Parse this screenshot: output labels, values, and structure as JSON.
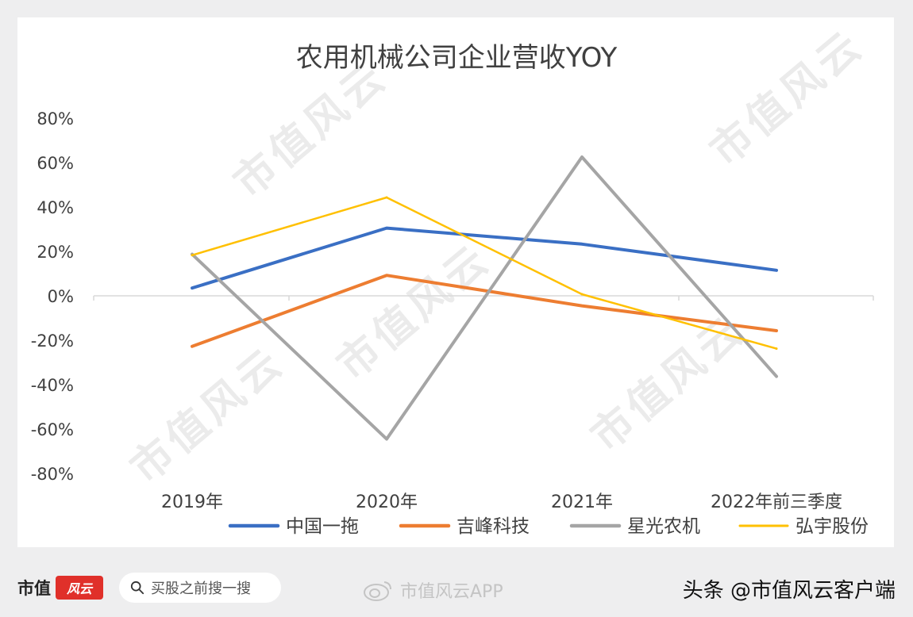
{
  "chart_data": {
    "type": "line",
    "title": "农用机械公司企业营收YOY",
    "xlabel": "",
    "ylabel": "",
    "categories": [
      "2019年",
      "2020年",
      "2021年",
      "2022年前三季度"
    ],
    "y_ticks": [
      "80%",
      "60%",
      "40%",
      "20%",
      "0%",
      "-20%",
      "-40%",
      "-60%",
      "-80%"
    ],
    "ylim": [
      -80,
      80
    ],
    "unit": "%",
    "legend_position": "bottom",
    "grid": false,
    "series": [
      {
        "name": "中国一拖",
        "color": "#3a6fc4",
        "values": [
          3.5,
          30.5,
          23.3,
          11.5
        ]
      },
      {
        "name": "吉峰科技",
        "color": "#ed7d31",
        "values": [
          -22.8,
          9.2,
          -4.5,
          -15.7
        ]
      },
      {
        "name": "星光农机",
        "color": "#a5a5a5",
        "values": [
          18.7,
          -64.5,
          62.5,
          -36.3
        ]
      },
      {
        "name": "弘宇股份",
        "color": "#ffc000",
        "values": [
          18.3,
          44.3,
          0.7,
          -23.8
        ]
      }
    ]
  },
  "watermark_text": "市值风云",
  "footer": {
    "brand": "市值",
    "brand_mark": "风云",
    "search_placeholder": "买股之前搜一搜",
    "weibo_label": "市值风云APP",
    "toutiao_label": "头条 @市值风云客户端"
  }
}
